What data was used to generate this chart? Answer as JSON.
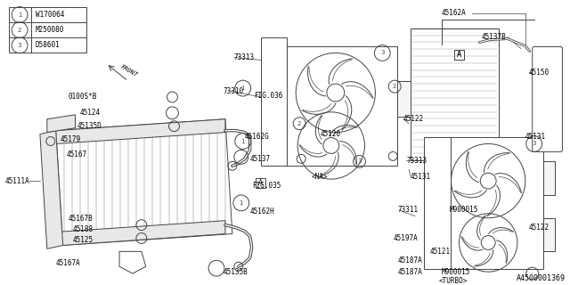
{
  "background_color": "#ffffff",
  "line_color": "#444444",
  "text_color": "#000000",
  "footer": "A4500001369",
  "legend": {
    "items": [
      {
        "num": "1",
        "code": "W170064"
      },
      {
        "num": "2",
        "code": "M250080"
      },
      {
        "num": "3",
        "code": "D58601"
      }
    ]
  },
  "figsize": [
    6.4,
    3.2
  ],
  "dpi": 100
}
